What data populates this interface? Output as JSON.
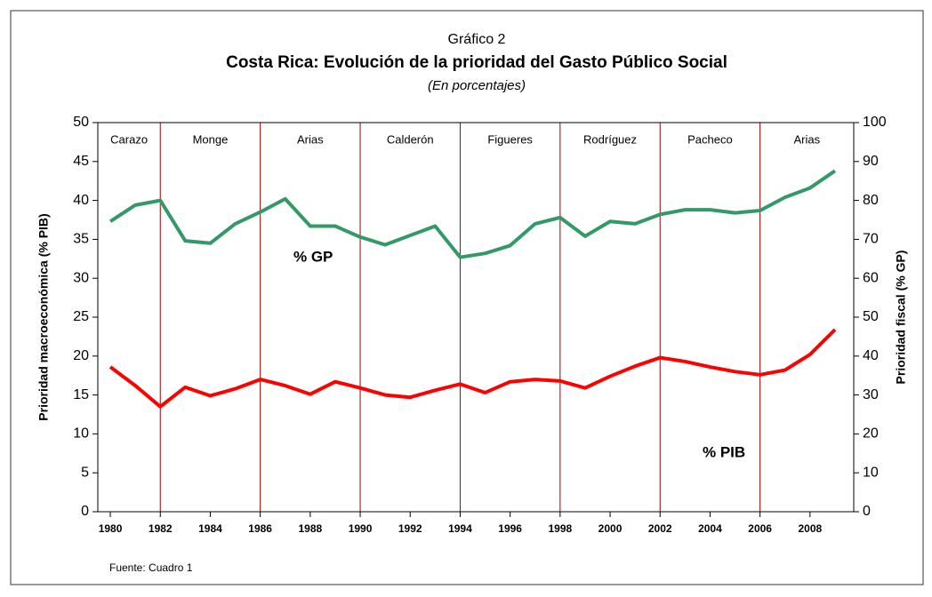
{
  "chart_data": {
    "type": "line",
    "title": "Gráfico 2",
    "subtitle": "Costa Rica: Evolución de la prioridad del Gasto Público Social",
    "subtitle2": "(En porcentajes)",
    "y_label": "Prioridad macroeconómica (% PIB)",
    "y2_label": "Prioridad fiscal (% GP)",
    "source": "Fuente: Cuadro 1",
    "x": [
      1980,
      1981,
      1982,
      1983,
      1984,
      1985,
      1986,
      1987,
      1988,
      1989,
      1990,
      1991,
      1992,
      1993,
      1994,
      1995,
      1996,
      1997,
      1998,
      1999,
      2000,
      2001,
      2002,
      2003,
      2004,
      2005,
      2006,
      2007,
      2008,
      2009
    ],
    "xlim": [
      1979.5,
      2009.75
    ],
    "xticks": [
      1980,
      1982,
      1984,
      1986,
      1988,
      1990,
      1992,
      1994,
      1996,
      1998,
      2000,
      2002,
      2004,
      2006,
      2008
    ],
    "ylim": [
      0,
      50
    ],
    "yticks": [
      0,
      5,
      10,
      15,
      20,
      25,
      30,
      35,
      40,
      45,
      50
    ],
    "y2lim": [
      0,
      100
    ],
    "y2ticks": [
      0,
      10,
      20,
      30,
      40,
      50,
      60,
      70,
      80,
      90,
      100
    ],
    "dividers": [
      1982,
      1986,
      1990,
      1994,
      1998,
      2002,
      2006
    ],
    "administrations": [
      "Carazo",
      "Monge",
      "Arias",
      "Calderón",
      "Figueres",
      "Rodríguez",
      "Pacheco",
      "Arias"
    ],
    "series": [
      {
        "name": "% GP",
        "color": "#339966",
        "axis": "y2",
        "values": [
          74.6,
          78.8,
          80,
          69.6,
          69,
          74,
          77,
          80.4,
          73.4,
          73.4,
          70.6,
          68.6,
          71,
          73.4,
          65.4,
          66.4,
          68.4,
          74,
          75.6,
          70.8,
          74.6,
          74,
          76.4,
          77.6,
          77.6,
          76.8,
          77.4,
          80.8,
          83.2,
          87.6
        ]
      },
      {
        "name": "% PIB",
        "color": "#ff0000",
        "values": [
          18.6,
          16.2,
          13.5,
          16,
          14.9,
          15.8,
          17,
          16.2,
          15.1,
          16.7,
          15.9,
          15,
          14.7,
          15.6,
          16.4,
          15.3,
          16.7,
          17,
          16.8,
          15.9,
          17.4,
          18.7,
          19.8,
          19.3,
          18.6,
          18,
          17.6,
          18.2,
          20.2,
          23.4
        ]
      }
    ]
  }
}
